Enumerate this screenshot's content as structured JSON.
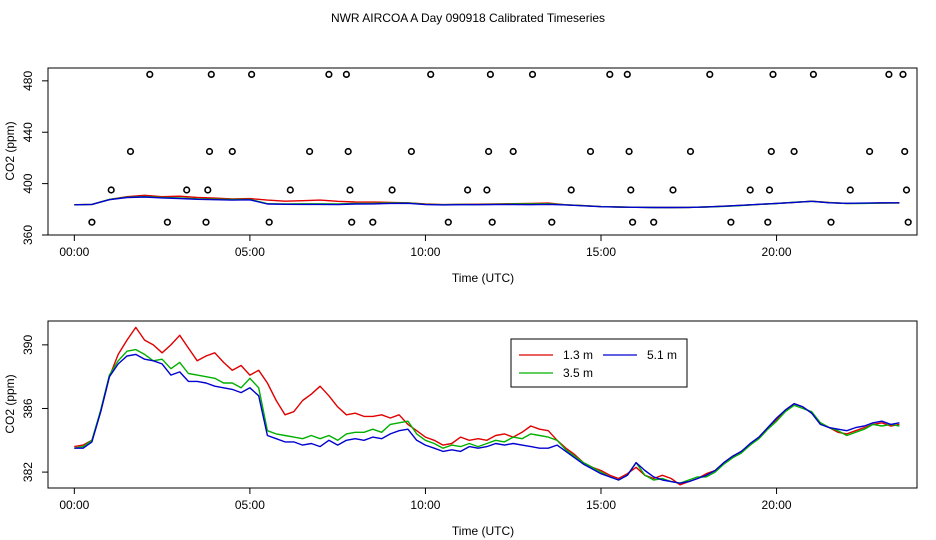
{
  "figure": {
    "title": "NWR AIRCOA A  Day 090918  Calibrated Timeseries"
  },
  "colors": {
    "h13": "#e00000",
    "h35": "#00b000",
    "h51": "#0000d0",
    "markers": "#000000",
    "axes": "#000000"
  },
  "chart_data": [
    {
      "type": "scatter",
      "title": "",
      "xlabel": "Time (UTC)",
      "ylabel": "CO2 (ppm)",
      "xlim": [
        -0.75,
        24.0
      ],
      "ylim": [
        360,
        490
      ],
      "xticks": [
        0,
        5,
        10,
        15,
        20
      ],
      "xtick_labels": [
        "00:00",
        "05:00",
        "10:00",
        "15:00",
        "20:00"
      ],
      "yticks": [
        360,
        400,
        440,
        480
      ],
      "ytick_labels": [
        "360",
        "400",
        "440",
        "480"
      ],
      "marker_series": {
        "name": "calibration standards",
        "x": [
          0.5,
          1.05,
          1.6,
          2.15,
          2.65,
          3.2,
          3.75,
          3.8,
          3.85,
          3.9,
          4.5,
          5.05,
          5.55,
          6.15,
          6.7,
          7.25,
          7.75,
          7.8,
          7.85,
          7.9,
          8.5,
          9.05,
          9.6,
          10.15,
          10.65,
          11.2,
          11.75,
          11.8,
          11.85,
          11.9,
          12.5,
          13.05,
          13.6,
          14.15,
          14.7,
          15.25,
          15.75,
          15.8,
          15.85,
          15.9,
          16.5,
          17.05,
          17.55,
          18.1,
          18.7,
          19.25,
          19.75,
          19.8,
          19.85,
          19.9,
          20.5,
          21.05,
          21.55,
          22.1,
          22.65,
          23.2,
          23.6,
          23.65,
          23.7,
          23.75
        ],
        "y": [
          370,
          395,
          425,
          485,
          370,
          395,
          370,
          395,
          425,
          485,
          425,
          485,
          370,
          395,
          425,
          485,
          485,
          425,
          395,
          370,
          370,
          395,
          425,
          485,
          370,
          395,
          395,
          425,
          485,
          370,
          425,
          485,
          370,
          395,
          425,
          485,
          485,
          425,
          395,
          370,
          370,
          395,
          425,
          485,
          370,
          395,
          370,
          395,
          425,
          485,
          425,
          485,
          370,
          395,
          425,
          485,
          485,
          425,
          395,
          370
        ]
      },
      "series": [
        {
          "name": "1.3 m",
          "x": [
            0.0,
            0.5,
            1.0,
            1.5,
            2.0,
            2.5,
            3.0,
            3.5,
            4.0,
            4.5,
            5.0,
            5.5,
            6.0,
            6.5,
            7.0,
            7.5,
            8.0,
            8.5,
            9.0,
            9.5,
            10.0,
            10.5,
            11.0,
            11.5,
            12.0,
            12.5,
            13.0,
            13.5,
            14.0,
            14.5,
            15.0,
            15.5,
            16.0,
            16.5,
            17.0,
            17.5,
            18.0,
            18.5,
            19.0,
            19.5,
            20.0,
            20.5,
            21.0,
            21.5,
            22.0,
            22.5,
            23.0,
            23.5
          ],
          "values": [
            383.6,
            383.8,
            387.6,
            389.8,
            390.9,
            389.8,
            390.2,
            389.2,
            388.7,
            388.1,
            388.3,
            387.2,
            386.3,
            386.7,
            387.2,
            386.2,
            385.7,
            385.6,
            385.4,
            385.1,
            384.1,
            383.7,
            383.9,
            384.0,
            384.2,
            384.4,
            384.6,
            384.8,
            383.5,
            382.9,
            382.1,
            381.8,
            381.6,
            381.5,
            381.4,
            381.5,
            381.9,
            382.4,
            383.1,
            383.8,
            384.6,
            385.4,
            386.3,
            385.3,
            384.6,
            384.7,
            384.9,
            385.0
          ]
        },
        {
          "name": "3.5 m",
          "x": [
            0.0,
            0.5,
            1.0,
            1.5,
            2.0,
            2.5,
            3.0,
            3.5,
            4.0,
            4.5,
            5.0,
            5.5,
            6.0,
            6.5,
            7.0,
            7.5,
            8.0,
            8.5,
            9.0,
            9.5,
            10.0,
            10.5,
            11.0,
            11.5,
            12.0,
            12.5,
            13.0,
            13.5,
            14.0,
            14.5,
            15.0,
            15.5,
            16.0,
            16.5,
            17.0,
            17.5,
            18.0,
            18.5,
            19.0,
            19.5,
            20.0,
            20.5,
            21.0,
            21.5,
            22.0,
            22.5,
            23.0,
            23.5
          ],
          "values": [
            383.5,
            383.8,
            387.7,
            389.4,
            389.9,
            389.2,
            388.8,
            388.2,
            387.9,
            387.6,
            387.7,
            384.4,
            384.2,
            384.3,
            384.3,
            384.1,
            384.5,
            384.6,
            385.0,
            385.0,
            383.9,
            383.6,
            383.8,
            383.7,
            383.9,
            384.1,
            384.2,
            384.3,
            383.5,
            382.8,
            382.1,
            381.8,
            381.6,
            381.4,
            381.3,
            381.5,
            381.8,
            382.3,
            383.0,
            383.8,
            384.5,
            385.5,
            386.2,
            385.2,
            384.5,
            384.6,
            384.8,
            385.0
          ]
        },
        {
          "name": "5.1 m",
          "x": [
            0.0,
            0.5,
            1.0,
            1.5,
            2.0,
            2.5,
            3.0,
            3.5,
            4.0,
            4.5,
            5.0,
            5.5,
            6.0,
            6.5,
            7.0,
            7.5,
            8.0,
            8.5,
            9.0,
            9.5,
            10.0,
            10.5,
            11.0,
            11.5,
            12.0,
            12.5,
            13.0,
            13.5,
            14.0,
            14.5,
            15.0,
            15.5,
            16.0,
            16.5,
            17.0,
            17.5,
            18.0,
            18.5,
            19.0,
            19.5,
            20.0,
            20.5,
            21.0,
            21.5,
            22.0,
            22.5,
            23.0,
            23.5
          ],
          "values": [
            383.5,
            383.8,
            387.5,
            389.2,
            389.6,
            388.9,
            388.4,
            387.8,
            387.5,
            387.2,
            387.4,
            384.1,
            383.9,
            383.8,
            383.8,
            383.7,
            384.1,
            384.2,
            384.6,
            384.7,
            383.7,
            383.4,
            383.6,
            383.6,
            383.7,
            383.7,
            383.6,
            383.8,
            383.4,
            382.7,
            382.0,
            381.7,
            381.6,
            381.4,
            381.4,
            381.5,
            381.9,
            382.4,
            383.1,
            383.9,
            384.6,
            385.4,
            386.2,
            385.1,
            384.7,
            384.8,
            385.1,
            385.1
          ]
        }
      ]
    },
    {
      "type": "line",
      "title": "",
      "xlabel": "Time (UTC)",
      "ylabel": "CO2 (ppm)",
      "xlim": [
        -0.75,
        24.0
      ],
      "ylim": [
        381.0,
        391.5
      ],
      "xticks": [
        0,
        5,
        10,
        15,
        20
      ],
      "xtick_labels": [
        "00:00",
        "05:00",
        "10:00",
        "15:00",
        "20:00"
      ],
      "yticks": [
        382,
        386,
        390
      ],
      "ytick_labels": [
        "382",
        "386",
        "390"
      ],
      "legend": "top-center",
      "series": [
        {
          "name": "1.3 m",
          "x": [
            0.0,
            0.25,
            0.5,
            0.75,
            1.0,
            1.25,
            1.5,
            1.75,
            2.0,
            2.25,
            2.5,
            2.75,
            3.0,
            3.25,
            3.5,
            3.75,
            4.0,
            4.25,
            4.5,
            4.75,
            5.0,
            5.25,
            5.5,
            5.75,
            6.0,
            6.25,
            6.5,
            6.75,
            7.0,
            7.25,
            7.5,
            7.75,
            8.0,
            8.25,
            8.5,
            8.75,
            9.0,
            9.25,
            9.5,
            9.75,
            10.0,
            10.25,
            10.5,
            10.75,
            11.0,
            11.25,
            11.5,
            11.75,
            12.0,
            12.25,
            12.5,
            12.75,
            13.0,
            13.25,
            13.5,
            13.75,
            14.0,
            14.25,
            14.5,
            14.75,
            15.0,
            15.25,
            15.5,
            15.75,
            16.0,
            16.25,
            16.5,
            16.75,
            17.0,
            17.25,
            17.5,
            17.75,
            18.0,
            18.25,
            18.5,
            18.75,
            19.0,
            19.25,
            19.5,
            19.75,
            20.0,
            20.25,
            20.5,
            20.75,
            21.0,
            21.25,
            21.5,
            21.75,
            22.0,
            22.25,
            22.5,
            22.75,
            23.0,
            23.25,
            23.5
          ],
          "values": [
            383.6,
            383.7,
            384.0,
            385.8,
            388.0,
            389.4,
            390.3,
            391.1,
            390.3,
            390.0,
            389.5,
            390.0,
            390.6,
            389.8,
            389.0,
            389.3,
            389.5,
            388.9,
            388.4,
            388.7,
            388.1,
            388.4,
            387.6,
            386.5,
            385.6,
            385.8,
            386.5,
            386.9,
            387.4,
            386.8,
            386.1,
            385.6,
            385.7,
            385.5,
            385.5,
            385.6,
            385.4,
            385.6,
            385.0,
            384.6,
            384.2,
            384.0,
            383.7,
            383.8,
            384.2,
            384.0,
            384.1,
            384.0,
            384.3,
            384.4,
            384.2,
            384.5,
            384.9,
            384.7,
            384.6,
            384.0,
            383.5,
            383.1,
            382.6,
            382.3,
            382.1,
            381.8,
            381.6,
            381.9,
            382.3,
            381.8,
            381.6,
            381.8,
            381.6,
            381.2,
            381.4,
            381.6,
            381.9,
            382.1,
            382.6,
            383.0,
            383.3,
            383.7,
            384.2,
            384.8,
            385.3,
            385.9,
            386.3,
            386.1,
            385.7,
            385.1,
            384.8,
            384.5,
            384.4,
            384.6,
            384.8,
            385.0,
            385.1,
            384.9,
            385.0
          ]
        },
        {
          "name": "3.5 m",
          "x": [
            0.0,
            0.25,
            0.5,
            0.75,
            1.0,
            1.25,
            1.5,
            1.75,
            2.0,
            2.25,
            2.5,
            2.75,
            3.0,
            3.25,
            3.5,
            3.75,
            4.0,
            4.25,
            4.5,
            4.75,
            5.0,
            5.25,
            5.5,
            5.75,
            6.0,
            6.25,
            6.5,
            6.75,
            7.0,
            7.25,
            7.5,
            7.75,
            8.0,
            8.25,
            8.5,
            8.75,
            9.0,
            9.25,
            9.5,
            9.75,
            10.0,
            10.25,
            10.5,
            10.75,
            11.0,
            11.25,
            11.5,
            11.75,
            12.0,
            12.25,
            12.5,
            12.75,
            13.0,
            13.25,
            13.5,
            13.75,
            14.0,
            14.25,
            14.5,
            14.75,
            15.0,
            15.25,
            15.5,
            15.75,
            16.0,
            16.25,
            16.5,
            16.75,
            17.0,
            17.25,
            17.5,
            17.75,
            18.0,
            18.25,
            18.5,
            18.75,
            19.0,
            19.25,
            19.5,
            19.75,
            20.0,
            20.25,
            20.5,
            20.75,
            21.0,
            21.25,
            21.5,
            21.75,
            22.0,
            22.25,
            22.5,
            22.75,
            23.0,
            23.25,
            23.5
          ],
          "values": [
            383.5,
            383.6,
            384.0,
            385.9,
            388.1,
            389.0,
            389.6,
            389.7,
            389.4,
            389.0,
            389.1,
            388.5,
            388.9,
            388.2,
            388.1,
            388.0,
            387.9,
            387.6,
            387.6,
            387.3,
            387.9,
            387.3,
            384.6,
            384.4,
            384.3,
            384.2,
            384.1,
            384.3,
            384.1,
            384.3,
            384.0,
            384.4,
            384.5,
            384.5,
            384.7,
            384.5,
            385.0,
            385.1,
            385.2,
            384.4,
            384.0,
            383.8,
            383.5,
            383.7,
            383.6,
            383.8,
            383.6,
            383.8,
            384.0,
            383.9,
            384.2,
            384.1,
            384.4,
            384.3,
            384.2,
            384.0,
            383.4,
            383.0,
            382.6,
            382.3,
            382.0,
            381.7,
            381.5,
            381.8,
            382.6,
            381.8,
            381.5,
            381.6,
            381.4,
            381.3,
            381.5,
            381.7,
            381.7,
            382.0,
            382.5,
            382.9,
            383.2,
            383.7,
            384.1,
            384.7,
            385.2,
            385.8,
            386.2,
            386.0,
            385.8,
            385.1,
            384.8,
            384.6,
            384.3,
            384.5,
            384.7,
            385.0,
            384.9,
            385.0,
            384.9
          ]
        },
        {
          "name": "5.1 m",
          "x": [
            0.0,
            0.25,
            0.5,
            0.75,
            1.0,
            1.25,
            1.5,
            1.75,
            2.0,
            2.25,
            2.5,
            2.75,
            3.0,
            3.25,
            3.5,
            3.75,
            4.0,
            4.25,
            4.5,
            4.75,
            5.0,
            5.25,
            5.5,
            5.75,
            6.0,
            6.25,
            6.5,
            6.75,
            7.0,
            7.25,
            7.5,
            7.75,
            8.0,
            8.25,
            8.5,
            8.75,
            9.0,
            9.25,
            9.5,
            9.75,
            10.0,
            10.25,
            10.5,
            10.75,
            11.0,
            11.25,
            11.5,
            11.75,
            12.0,
            12.25,
            12.5,
            12.75,
            13.0,
            13.25,
            13.5,
            13.75,
            14.0,
            14.25,
            14.5,
            14.75,
            15.0,
            15.25,
            15.5,
            15.75,
            16.0,
            16.25,
            16.5,
            16.75,
            17.0,
            17.25,
            17.5,
            17.75,
            18.0,
            18.25,
            18.5,
            18.75,
            19.0,
            19.25,
            19.5,
            19.75,
            20.0,
            20.25,
            20.5,
            20.75,
            21.0,
            21.25,
            21.5,
            21.75,
            22.0,
            22.25,
            22.5,
            22.75,
            23.0,
            23.25,
            23.5
          ],
          "values": [
            383.5,
            383.5,
            383.9,
            385.8,
            388.0,
            388.8,
            389.3,
            389.4,
            389.1,
            389.0,
            388.8,
            388.1,
            388.3,
            387.7,
            387.7,
            387.6,
            387.4,
            387.3,
            387.2,
            387.0,
            387.3,
            386.8,
            384.3,
            384.1,
            383.9,
            383.9,
            383.7,
            383.8,
            383.6,
            384.0,
            383.7,
            384.0,
            384.1,
            384.0,
            384.2,
            384.1,
            384.4,
            384.6,
            384.7,
            384.0,
            383.7,
            383.5,
            383.3,
            383.4,
            383.3,
            383.6,
            383.5,
            383.6,
            383.8,
            383.7,
            383.8,
            383.7,
            383.6,
            383.5,
            383.5,
            383.7,
            383.3,
            382.9,
            382.5,
            382.2,
            381.9,
            381.7,
            381.5,
            381.8,
            382.6,
            382.1,
            381.7,
            381.5,
            381.4,
            381.3,
            381.4,
            381.6,
            381.8,
            382.1,
            382.6,
            383.0,
            383.3,
            383.8,
            384.2,
            384.8,
            385.4,
            385.9,
            386.3,
            386.1,
            385.7,
            385.0,
            384.8,
            384.7,
            384.6,
            384.8,
            384.9,
            385.1,
            385.2,
            385.0,
            385.1
          ]
        }
      ]
    }
  ]
}
